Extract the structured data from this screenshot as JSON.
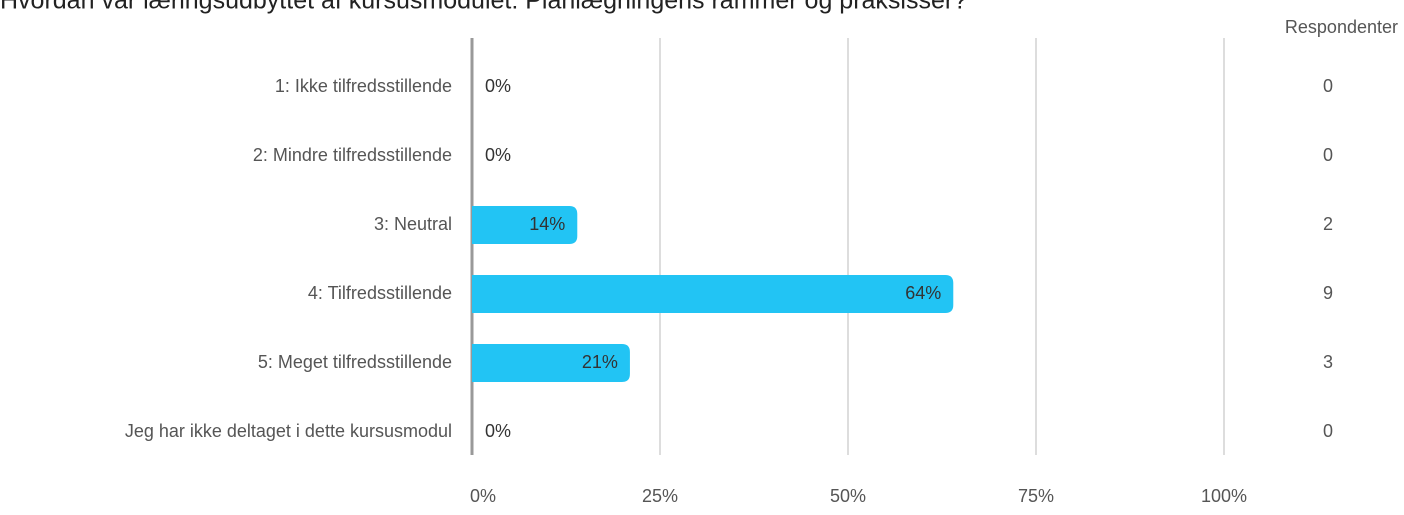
{
  "chart_data": {
    "type": "hbar",
    "title": "Hvordan var læringsudbyttet af kursusmodulet: Planlægningens rammer og praksisser?",
    "categories": [
      "1: Ikke tilfredsstillende",
      "2: Mindre tilfredsstillende",
      "3: Neutral",
      "4: Tilfredsstillende",
      "5: Meget tilfredsstillende",
      "Jeg har ikke deltaget i dette kursusmodul"
    ],
    "values": [
      0,
      0,
      14,
      64,
      21,
      0
    ],
    "value_labels": [
      "0%",
      "0%",
      "14%",
      "64%",
      "21%",
      "0%"
    ],
    "color": "#22c4f4",
    "respondents_label": "Respondenter",
    "respondents": [
      0,
      0,
      2,
      9,
      3,
      0
    ],
    "xlim": [
      0,
      100
    ],
    "xticks": [
      {
        "value": 0,
        "label": "0%"
      },
      {
        "value": 25,
        "label": "25%"
      },
      {
        "value": 50,
        "label": "50%"
      },
      {
        "value": 75,
        "label": "75%"
      },
      {
        "value": 100,
        "label": "100%"
      }
    ],
    "grid": true
  }
}
